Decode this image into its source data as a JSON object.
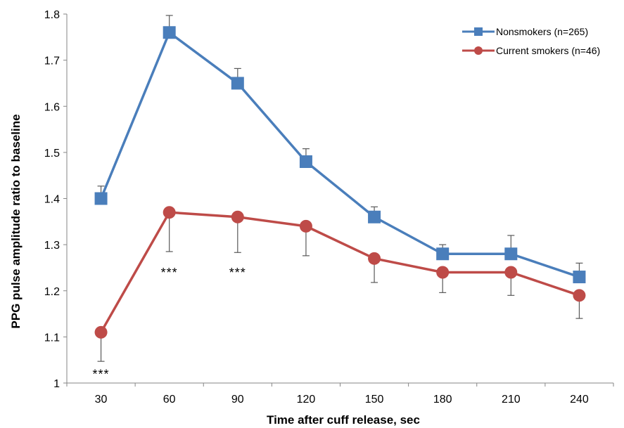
{
  "chart_data": {
    "type": "line",
    "title": "",
    "xlabel": "Time after cuff release, sec",
    "ylabel": "PPG pulse amplitude ratio to baseline",
    "x": [
      30,
      60,
      90,
      120,
      150,
      180,
      210,
      240
    ],
    "x_tick_labels": [
      "30",
      "60",
      "90",
      "120",
      "150",
      "180",
      "210",
      "240"
    ],
    "ylim": [
      1,
      1.8
    ],
    "y_ticks": [
      1,
      1.1,
      1.2,
      1.3,
      1.4,
      1.5,
      1.6,
      1.7,
      1.8
    ],
    "y_tick_labels": [
      "1",
      "1.1",
      "1.2",
      "1.3",
      "1.4",
      "1.5",
      "1.6",
      "1.7",
      "1.8"
    ],
    "grid": false,
    "legend_position": "top-right",
    "series": [
      {
        "name": "Nonsmokers (n=265)",
        "color": "#4a7ebb",
        "marker": "square",
        "values": [
          1.4,
          1.76,
          1.65,
          1.48,
          1.36,
          1.28,
          1.28,
          1.23
        ],
        "error_up": [
          0.027,
          0.037,
          0.032,
          0.028,
          0.022,
          0.02,
          0.04,
          0.03
        ],
        "error_down": [
          0,
          0,
          0,
          0,
          0,
          0,
          0,
          0
        ]
      },
      {
        "name": "Current smokers (n=46)",
        "color": "#be4b48",
        "marker": "circle",
        "values": [
          1.11,
          1.37,
          1.36,
          1.34,
          1.27,
          1.24,
          1.24,
          1.19
        ],
        "error_up": [
          0,
          0,
          0,
          0,
          0,
          0,
          0,
          0
        ],
        "error_down": [
          0.063,
          0.085,
          0.077,
          0.064,
          0.052,
          0.044,
          0.05,
          0.05
        ]
      }
    ],
    "annotations": [
      {
        "text": "***",
        "x": 30,
        "y": 1.025
      },
      {
        "text": "***",
        "x": 60,
        "y": 1.245
      },
      {
        "text": "***",
        "x": 90,
        "y": 1.245
      }
    ]
  }
}
